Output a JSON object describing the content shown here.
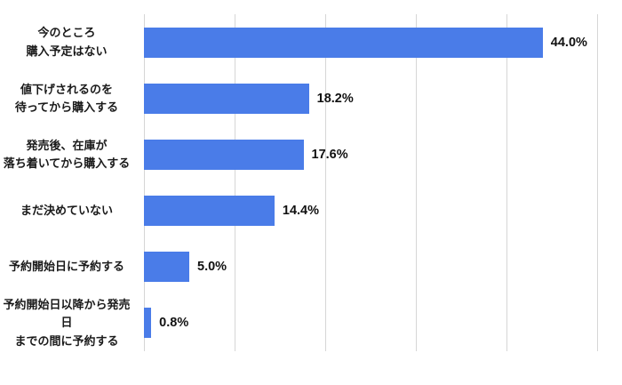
{
  "chart_data": {
    "type": "bar",
    "orientation": "horizontal",
    "title": "",
    "xlabel": "",
    "ylabel": "",
    "categories": [
      "今のところ\n購入予定はない",
      "値下げされるのを\n待ってから購入する",
      "発売後、在庫が\n落ち着いてから購入する",
      "まだ決めていない",
      "予約開始日に予約する",
      "予約開始日以降から発売日\nまでの間に予約する"
    ],
    "values": [
      44.0,
      18.2,
      17.6,
      14.4,
      5.0,
      0.8
    ],
    "value_labels": [
      "44.0%",
      "18.2%",
      "17.6%",
      "14.4%",
      "5.0%",
      "0.8%"
    ],
    "xlim": [
      0,
      50
    ],
    "gridline_step": 10,
    "grid": true,
    "legend": "none",
    "bar_color": "#4a7ce8",
    "gridline_color": "#d6d6d6",
    "label_color": "#1a1a1a",
    "value_label_color": "#111111",
    "background_color": "#ffffff"
  }
}
